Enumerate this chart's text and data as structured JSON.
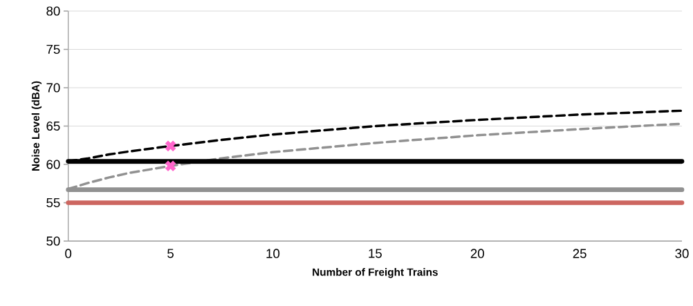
{
  "chart_data": {
    "type": "line",
    "xlabel": "Number of Freight Trains",
    "ylabel": "Noise Level (dBA)",
    "xlim": [
      0,
      30
    ],
    "ylim": [
      50,
      80
    ],
    "xticks": [
      0,
      5,
      10,
      15,
      20,
      25,
      30
    ],
    "yticks": [
      50,
      55,
      60,
      65,
      70,
      75,
      80
    ],
    "grid": "y",
    "marker": "none",
    "series": [
      {
        "color": "#000000",
        "line_style": "dashed",
        "x": [
          0,
          1,
          2,
          3,
          5,
          7.5,
          10,
          15,
          20,
          25,
          30
        ],
        "values": [
          60.4,
          60.8,
          61.3,
          61.7,
          62.4,
          63.2,
          63.9,
          65.0,
          65.8,
          66.5,
          67.0
        ]
      },
      {
        "color": "#919191",
        "line_style": "dashed",
        "x": [
          0,
          1,
          2,
          3,
          5,
          7.5,
          10,
          15,
          20,
          25,
          30
        ],
        "values": [
          56.8,
          57.6,
          58.3,
          58.9,
          59.8,
          60.8,
          61.6,
          62.8,
          63.8,
          64.6,
          65.3
        ]
      },
      {
        "color": "#000000",
        "line_style": "solid",
        "x": [
          0,
          30
        ],
        "values": [
          60.4,
          60.4
        ]
      },
      {
        "color": "#919191",
        "line_style": "solid",
        "x": [
          0,
          30
        ],
        "values": [
          56.7,
          56.7
        ]
      },
      {
        "color": "#cd6660",
        "line_style": "solid",
        "x": [
          0,
          30
        ],
        "values": [
          55.0,
          55.0
        ]
      },
      {
        "type": "scatter",
        "marker": "cross",
        "color": "#ff66cc",
        "x": [
          5,
          5
        ],
        "values": [
          62.4,
          59.8
        ]
      }
    ]
  }
}
